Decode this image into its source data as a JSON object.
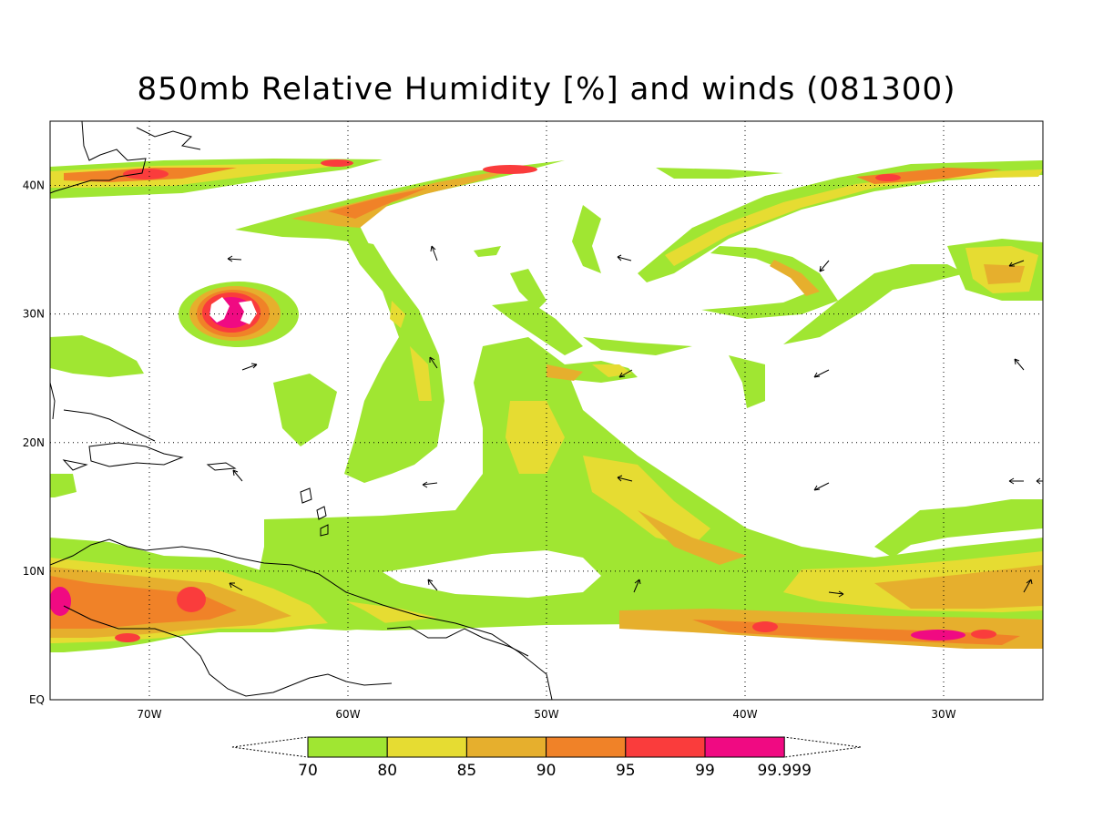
{
  "title": "850mb Relative Humidity [%] and winds (081300)",
  "colors": {
    "c70": "#a0e632",
    "c80": "#e6dc32",
    "c85": "#e6af2d",
    "c90": "#f08228",
    "c95": "#fa3c3c",
    "c99": "#f00a82"
  },
  "axes": {
    "lon_range": [
      -75,
      -25
    ],
    "lat_range": [
      0,
      45
    ],
    "lon_ticks": [
      {
        "value": -70,
        "label": "70W"
      },
      {
        "value": -60,
        "label": "60W"
      },
      {
        "value": -50,
        "label": "50W"
      },
      {
        "value": -40,
        "label": "40W"
      },
      {
        "value": -30,
        "label": "30W"
      }
    ],
    "lat_ticks": [
      {
        "value": 0,
        "label": "EQ"
      },
      {
        "value": 10,
        "label": "10N"
      },
      {
        "value": 20,
        "label": "20N"
      },
      {
        "value": 30,
        "label": "30N"
      },
      {
        "value": 40,
        "label": "40N"
      }
    ],
    "gridlines": "dotted"
  },
  "colorbar": {
    "levels": [
      "70",
      "80",
      "85",
      "90",
      "95",
      "99",
      "99.999"
    ],
    "bins": [
      {
        "from": 70,
        "to": 80,
        "color": "#a0e632"
      },
      {
        "from": 80,
        "to": 85,
        "color": "#e6dc32"
      },
      {
        "from": 85,
        "to": 90,
        "color": "#e6af2d"
      },
      {
        "from": 90,
        "to": 95,
        "color": "#f08228"
      },
      {
        "from": 95,
        "to": 99,
        "color": "#fa3c3c"
      },
      {
        "from": 99,
        "to": 99.999,
        "color": "#f00a82"
      }
    ]
  }
}
